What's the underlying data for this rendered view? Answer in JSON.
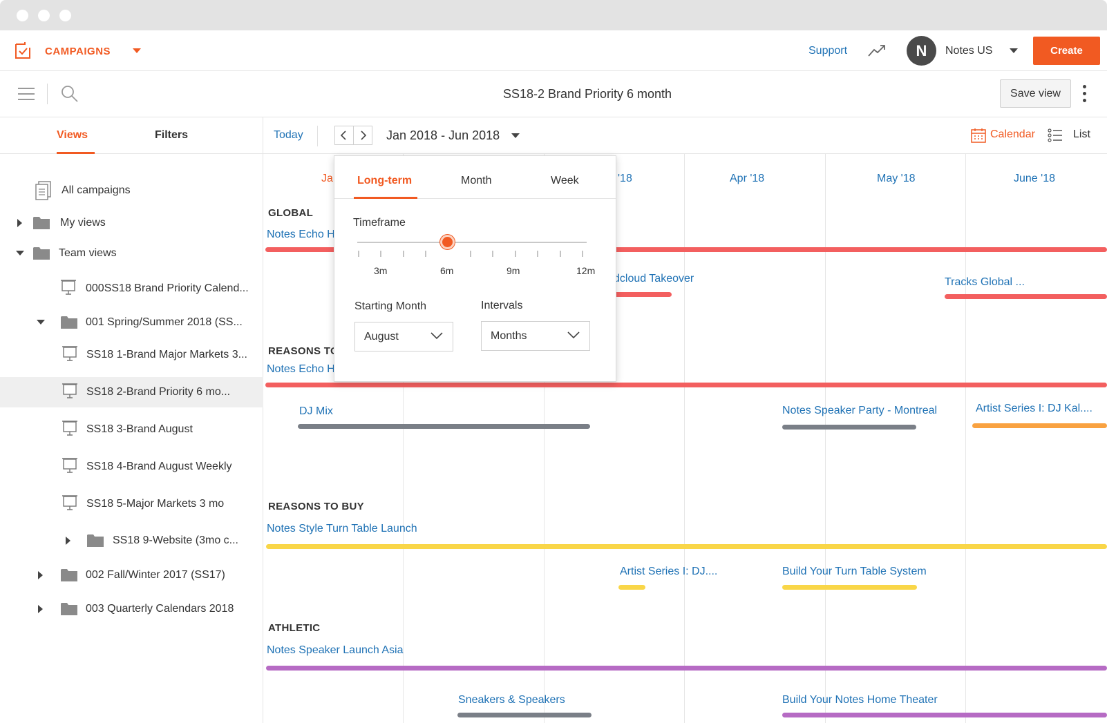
{
  "header": {
    "app_label": "CAMPAIGNS",
    "support_label": "Support",
    "avatar_initial": "N",
    "account_name": "Notes US",
    "create_label": "Create"
  },
  "toolbar": {
    "view_title": "SS18-2 Brand Priority 6 month",
    "save_view_label": "Save view"
  },
  "sidebar": {
    "tabs": [
      "Views",
      "Filters"
    ],
    "active_tab": "Views",
    "items": [
      {
        "label": "All campaigns",
        "icon": "document-icon"
      },
      {
        "label": "My views",
        "icon": "folder-icon"
      },
      {
        "label": "Team views",
        "icon": "folder-icon"
      },
      {
        "label": "000SS18 Brand Priority Calend...",
        "icon": "board-icon"
      },
      {
        "label": "001 Spring/Summer 2018 (SS...",
        "icon": "folder-icon"
      },
      {
        "label": "SS18 1-Brand Major Markets 3...",
        "icon": "board-icon"
      },
      {
        "label": "SS18 2-Brand Priority 6 mo...",
        "icon": "board-icon",
        "selected": true
      },
      {
        "label": "SS18 3-Brand August",
        "icon": "board-icon"
      },
      {
        "label": "SS18 4-Brand August Weekly",
        "icon": "board-icon"
      },
      {
        "label": "SS18 5-Major Markets 3 mo",
        "icon": "board-icon"
      },
      {
        "label": "SS18 9-Website (3mo c...",
        "icon": "folder-icon"
      },
      {
        "label": "002 Fall/Winter 2017 (SS17)",
        "icon": "folder-icon"
      },
      {
        "label": "003 Quarterly Calendars 2018",
        "icon": "folder-icon"
      }
    ]
  },
  "calendar": {
    "today_label": "Today",
    "range_label": "Jan 2018 - Jun 2018",
    "calendar_toggle": "Calendar",
    "list_toggle": "List",
    "months": [
      "Ja",
      "'18",
      "Apr '18",
      "May '18",
      "June '18"
    ],
    "groups": {
      "global": "GLOBAL",
      "reasons_to_partial": "REASONS TO",
      "reasons_to_buy": "REASONS TO BUY",
      "athletic": "ATHLETIC"
    },
    "events": {
      "notes_echo_global": "Notes Echo H",
      "soundcloud_takeover": "dcloud Takeover",
      "tracks_global": "Tracks Global ...",
      "notes_echo_reasons": "Notes Echo H",
      "dj_mix": "DJ Mix",
      "speaker_party": "Notes Speaker Party - Montreal",
      "artist_series_kal": "Artist Series I: DJ Kal....",
      "turn_table_launch": "Notes Style Turn Table Launch",
      "artist_series_dj": "Artist Series I: DJ....",
      "build_turn_table": "Build Your Turn Table System",
      "speaker_launch_asia": "Notes Speaker Launch Asia",
      "sneakers_speakers": "Sneakers & Speakers",
      "home_theater": "Build Your Notes Home Theater"
    },
    "colors": {
      "red": "#f35f5f",
      "gray": "#7a7f87",
      "orange": "#f9a241",
      "yellow": "#f9d648",
      "purple": "#b66bc4"
    }
  },
  "popover": {
    "tabs": [
      "Long-term",
      "Month",
      "Week"
    ],
    "active_tab": "Long-term",
    "timeframe_label": "Timeframe",
    "tick_labels": [
      "3m",
      "6m",
      "9m",
      "12m"
    ],
    "selected_timeframe": "6m",
    "starting_month_label": "Starting Month",
    "starting_month_value": "August",
    "intervals_label": "Intervals",
    "intervals_value": "Months"
  },
  "theme": {
    "accent": "#f15a22",
    "link": "#1f72b5"
  }
}
